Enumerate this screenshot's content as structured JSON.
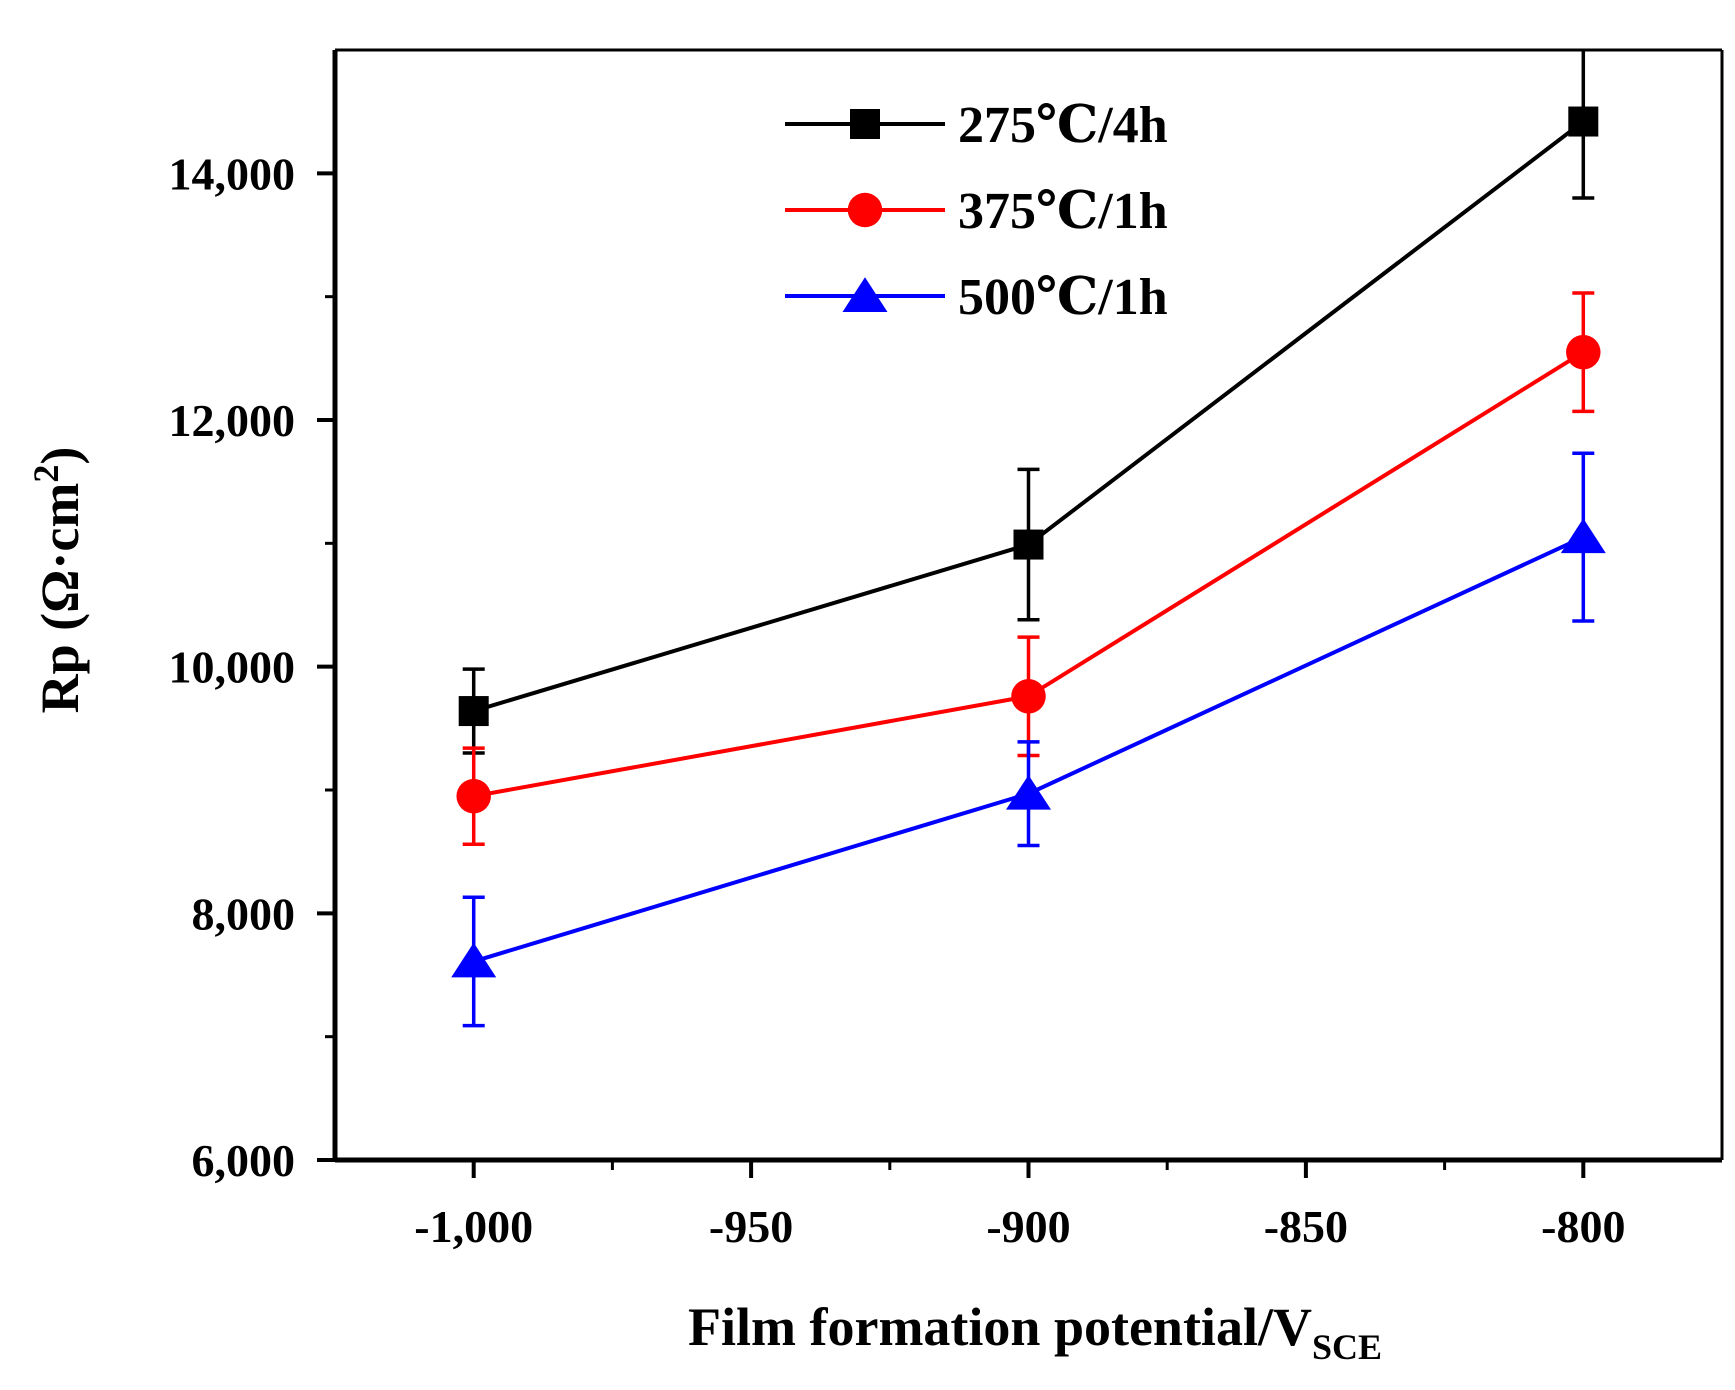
{
  "chart_data": {
    "type": "line",
    "xlabel": "Film formation potential/V",
    "xlabel_sub": "SCE",
    "ylabel": "Rp (Ω·cm",
    "ylabel_sup": "2",
    "ylabel_close": ")",
    "x": [
      -1000,
      -900,
      -800
    ],
    "xlim": [
      -1025,
      -775
    ],
    "ylim": [
      6000,
      15000
    ],
    "xticks": [
      -1000,
      -950,
      -900,
      -850,
      -800
    ],
    "xtick_labels": [
      "-1,000",
      "-950",
      "-900",
      "-850",
      "-800"
    ],
    "xminor": [
      -975,
      -925,
      -875,
      -825
    ],
    "yticks": [
      6000,
      8000,
      10000,
      12000,
      14000
    ],
    "ytick_labels": [
      "6,000",
      "8,000",
      "10,000",
      "12,000",
      "14,000"
    ],
    "yminor": [
      7000,
      9000,
      11000,
      13000
    ],
    "grid": false,
    "legend_position": "top-center",
    "series": [
      {
        "name": "275℃/4h",
        "marker": "square",
        "color": "#000000",
        "values": [
          9640,
          10990,
          14420
        ],
        "errors": [
          340,
          610,
          620
        ]
      },
      {
        "name": "375℃/1h",
        "marker": "circle",
        "color": "#ff0000",
        "values": [
          8950,
          9760,
          12550
        ],
        "errors": [
          390,
          480,
          480
        ]
      },
      {
        "name": "500℃/1h",
        "marker": "triangle",
        "color": "#0000ff",
        "values": [
          7610,
          8970,
          11050
        ],
        "errors": [
          520,
          420,
          680
        ]
      }
    ]
  }
}
